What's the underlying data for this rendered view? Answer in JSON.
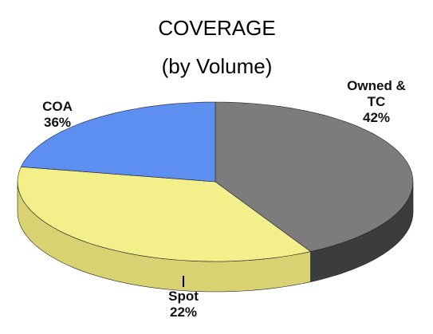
{
  "chart_data": {
    "type": "pie",
    "title": "COVERAGE",
    "subtitle": "(by Volume)",
    "categories": [
      "Owned & TC",
      "COA",
      "Spot"
    ],
    "values": [
      42,
      36,
      22
    ],
    "value_labels": [
      "42%",
      "36%",
      "22%"
    ],
    "colors": [
      "#7c7c7c",
      "#f3f08c",
      "#5c8ff0"
    ],
    "side_colors": [
      "#3c3c3c",
      "#d9d273",
      "#2b4b8c"
    ]
  }
}
